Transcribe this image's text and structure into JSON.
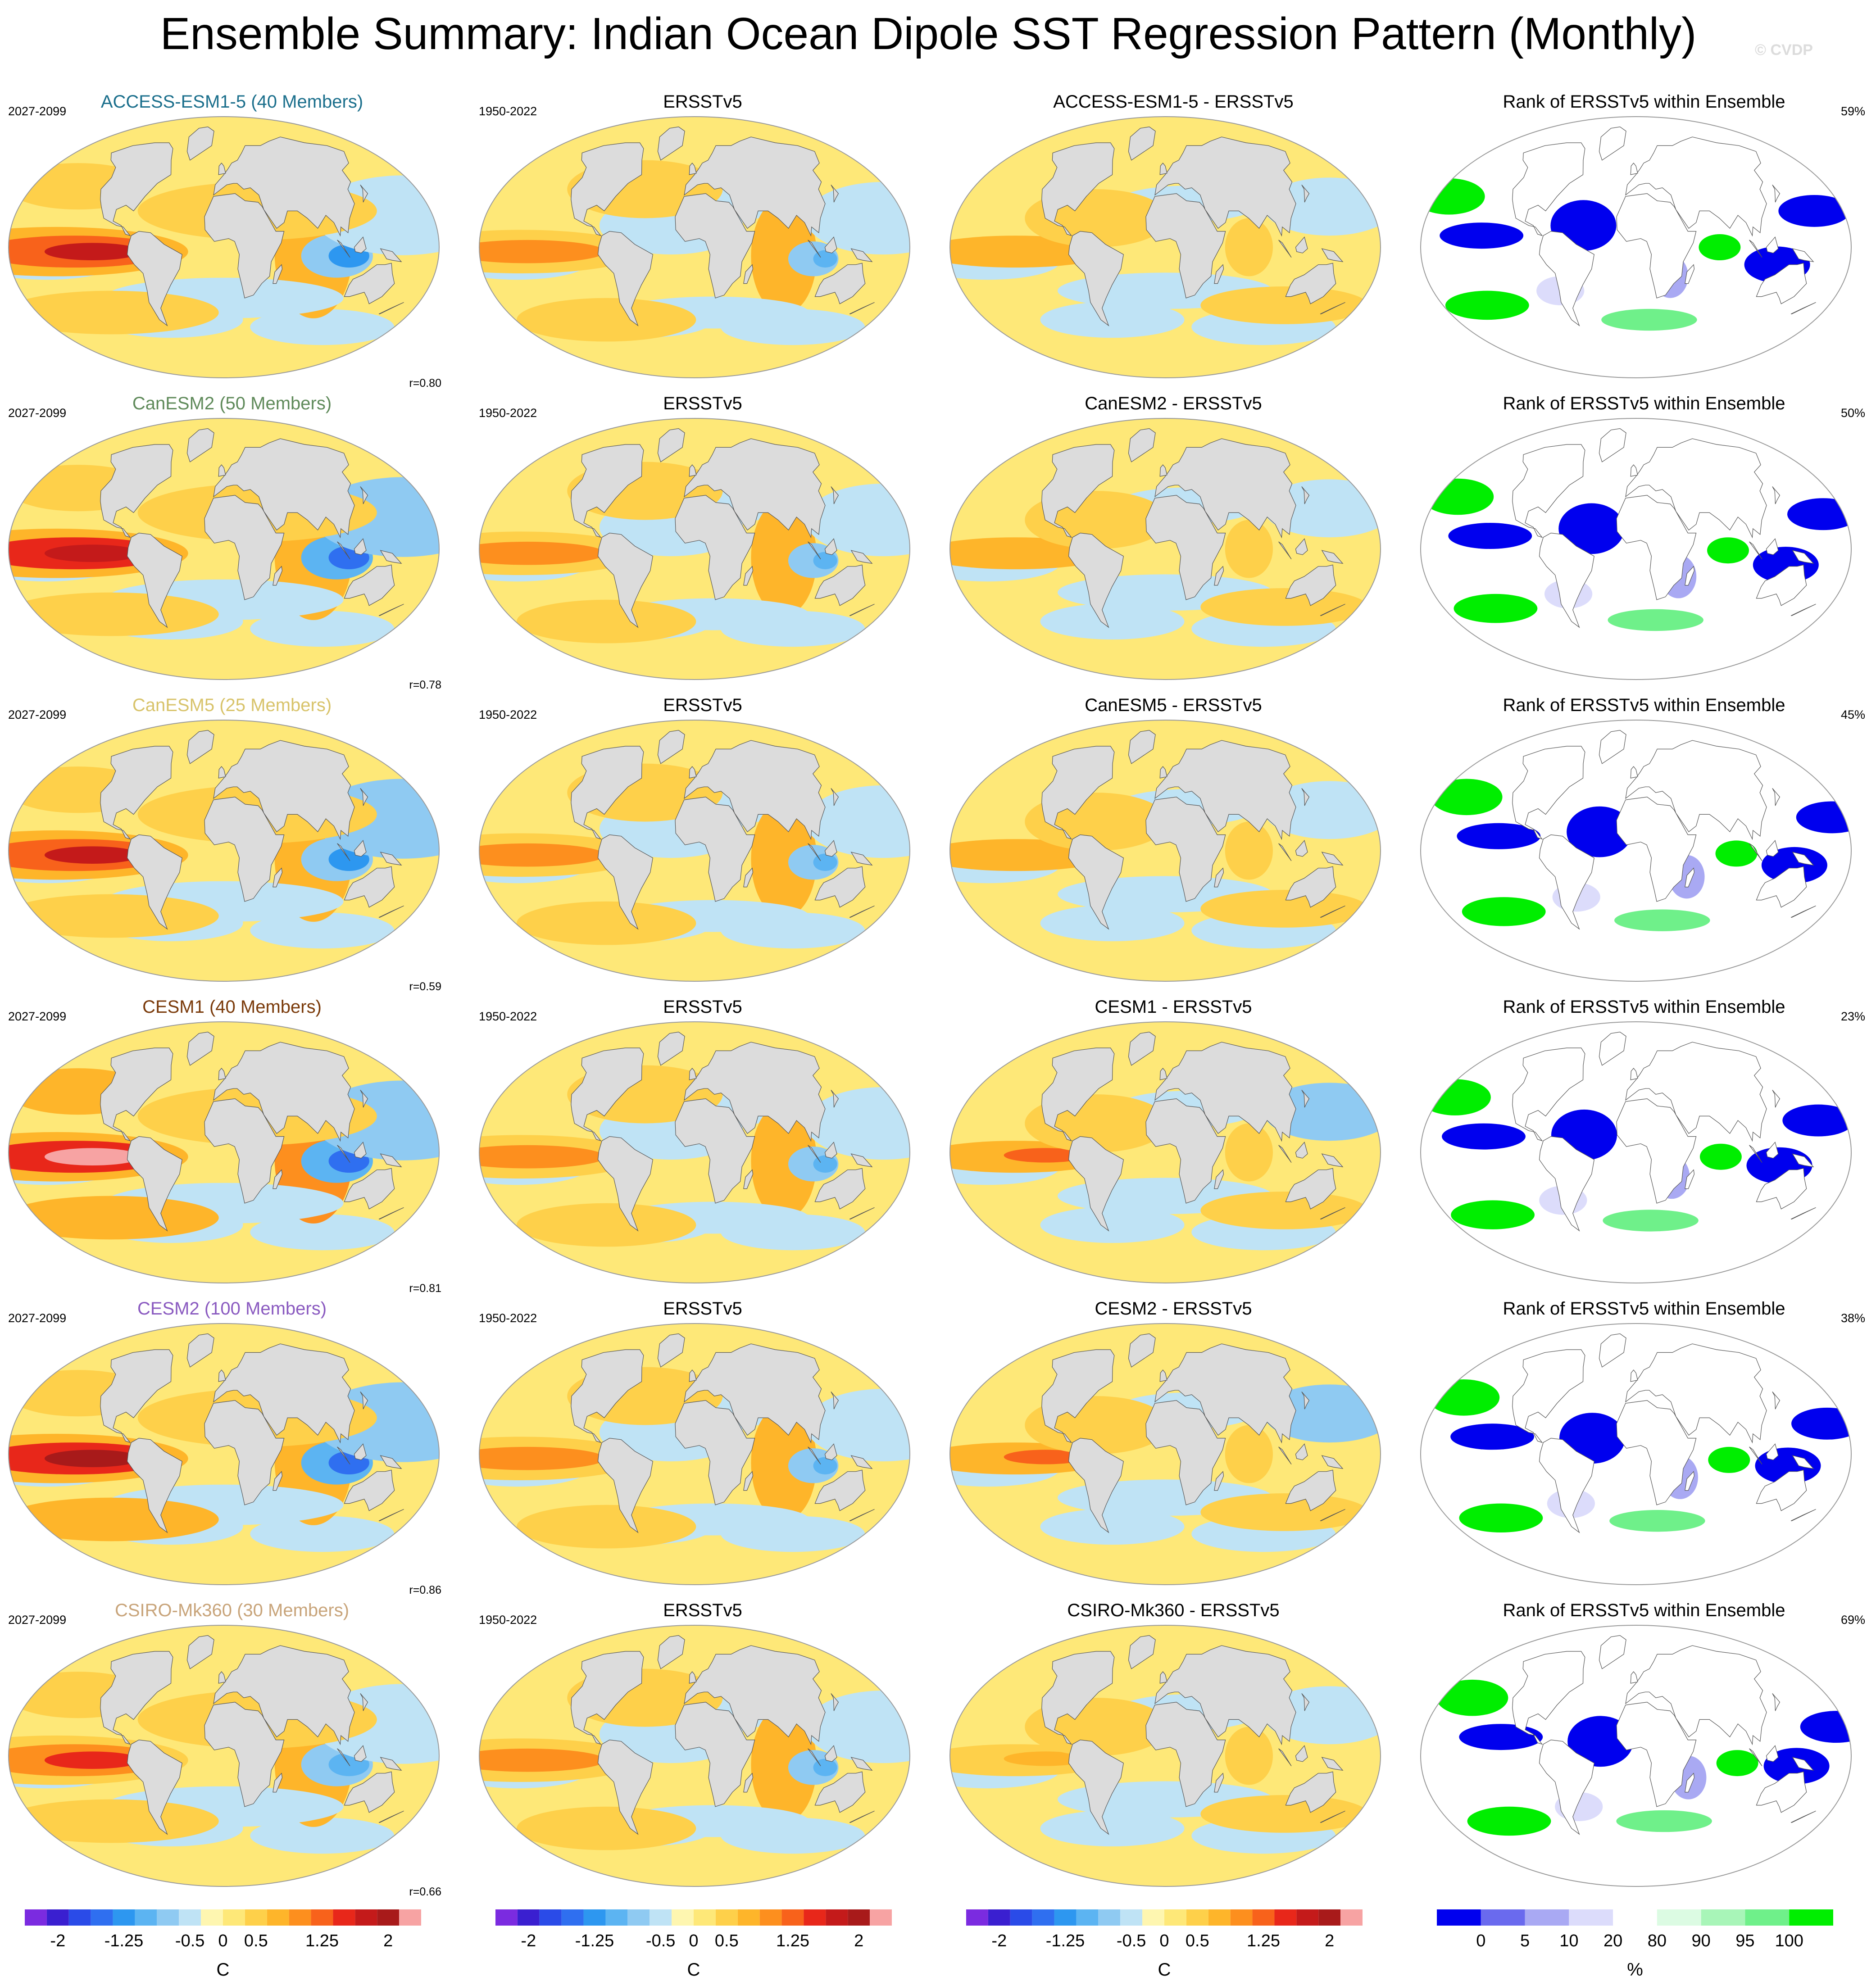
{
  "title": "Ensemble Summary: Indian Ocean Dipole SST Regression Pattern (Monthly)",
  "copyright": "© CVDP",
  "colors": {
    "land": "#dcdcdc",
    "ocean_border": "#9a9a9a",
    "sst_scale": [
      "#7b2be0",
      "#3a1fd0",
      "#2a4be8",
      "#2f6ff0",
      "#2d97f0",
      "#5cb4f2",
      "#8fcaf2",
      "#bfe3f5",
      "#fef6b0",
      "#fee878",
      "#fed04a",
      "#feb52a",
      "#fd8f1e",
      "#f8621b",
      "#e8271a",
      "#c41a1a",
      "#a81a1a",
      "#f7a3a3"
    ],
    "rank_scale": [
      "#0000ee",
      "#6a6aee",
      "#a9a9f3",
      "#dcdcfb",
      "#ffffff",
      "#dcfbe3",
      "#a8f5b8",
      "#6ff08a",
      "#00ee00"
    ]
  },
  "rows": [
    {
      "model": "ACCESS-ESM1-5 (40 Members)",
      "model_color": "#1b6f8c",
      "years": "2027-2099",
      "obs_years": "1950-2022",
      "diff_title": "ACCESS-ESM1-5 - ERSSTv5",
      "r": "r=0.80",
      "rank_pct": "59%",
      "amp": 1.0
    },
    {
      "model": "CanESM2 (50 Members)",
      "model_color": "#5f8a5a",
      "years": "2027-2099",
      "obs_years": "1950-2022",
      "diff_title": "CanESM2 - ERSSTv5",
      "r": "r=0.78",
      "rank_pct": "50%",
      "amp": 1.1
    },
    {
      "model": "CanESM5 (25 Members)",
      "model_color": "#d8c36a",
      "years": "2027-2099",
      "obs_years": "1950-2022",
      "diff_title": "CanESM5 - ERSSTv5",
      "r": "r=0.59",
      "rank_pct": "45%",
      "amp": 1.05
    },
    {
      "model": "CESM1 (40 Members)",
      "model_color": "#7a3a0a",
      "years": "2027-2099",
      "obs_years": "1950-2022",
      "diff_title": "CESM1 - ERSSTv5",
      "r": "r=0.81",
      "rank_pct": "23%",
      "amp": 1.3
    },
    {
      "model": "CESM2 (100 Members)",
      "model_color": "#8a5ac0",
      "years": "2027-2099",
      "obs_years": "1950-2022",
      "diff_title": "CESM2 - ERSSTv5",
      "r": "r=0.86",
      "rank_pct": "38%",
      "amp": 1.2
    },
    {
      "model": "CSIRO-Mk360 (30 Members)",
      "model_color": "#c8a47a",
      "years": "2027-2099",
      "obs_years": "1950-2022",
      "diff_title": "CSIRO-Mk360 - ERSSTv5",
      "r": "r=0.66",
      "rank_pct": "69%",
      "amp": 0.85
    }
  ],
  "obs_title": "ERSSTv5",
  "rank_title": "Rank of ERSSTv5 within Ensemble",
  "sst_colorbar": {
    "ticks": [
      "-2",
      "-1.25",
      "-0.5",
      "0",
      "0.5",
      "1.25",
      "2"
    ],
    "unit": "C"
  },
  "rank_colorbar": {
    "ticks": [
      "0",
      "5",
      "10",
      "20",
      "80",
      "90",
      "95",
      "100"
    ],
    "unit": "%"
  },
  "chart_data": [
    {
      "type": "heatmap",
      "title": "ACCESS-ESM1-5 (40 Members)",
      "period": "2027-2099",
      "annotation": "r=0.80",
      "xlabel": "",
      "ylabel": ""
    },
    {
      "type": "heatmap",
      "title": "ERSSTv5",
      "period": "1950-2022",
      "xlabel": "",
      "ylabel": ""
    },
    {
      "type": "heatmap",
      "title": "ACCESS-ESM1-5 - ERSSTv5",
      "xlabel": "",
      "ylabel": ""
    },
    {
      "type": "heatmap",
      "title": "Rank of ERSSTv5 within Ensemble",
      "annotation": "59%",
      "xlabel": "",
      "ylabel": ""
    },
    {
      "type": "heatmap",
      "title": "CanESM2 (50 Members)",
      "period": "2027-2099",
      "annotation": "r=0.78",
      "xlabel": "",
      "ylabel": ""
    },
    {
      "type": "heatmap",
      "title": "ERSSTv5",
      "period": "1950-2022",
      "xlabel": "",
      "ylabel": ""
    },
    {
      "type": "heatmap",
      "title": "CanESM2 - ERSSTv5",
      "xlabel": "",
      "ylabel": ""
    },
    {
      "type": "heatmap",
      "title": "Rank of ERSSTv5 within Ensemble",
      "annotation": "50%",
      "xlabel": "",
      "ylabel": ""
    },
    {
      "type": "heatmap",
      "title": "CanESM5 (25 Members)",
      "period": "2027-2099",
      "annotation": "r=0.59",
      "xlabel": "",
      "ylabel": ""
    },
    {
      "type": "heatmap",
      "title": "ERSSTv5",
      "period": "1950-2022",
      "xlabel": "",
      "ylabel": ""
    },
    {
      "type": "heatmap",
      "title": "CanESM5 - ERSSTv5",
      "xlabel": "",
      "ylabel": ""
    },
    {
      "type": "heatmap",
      "title": "Rank of ERSSTv5 within Ensemble",
      "annotation": "45%",
      "xlabel": "",
      "ylabel": ""
    },
    {
      "type": "heatmap",
      "title": "CESM1 (40 Members)",
      "period": "2027-2099",
      "annotation": "r=0.81",
      "xlabel": "",
      "ylabel": ""
    },
    {
      "type": "heatmap",
      "title": "ERSSTv5",
      "period": "1950-2022",
      "xlabel": "",
      "ylabel": ""
    },
    {
      "type": "heatmap",
      "title": "CESM1 - ERSSTv5",
      "xlabel": "",
      "ylabel": ""
    },
    {
      "type": "heatmap",
      "title": "Rank of ERSSTv5 within Ensemble",
      "annotation": "23%",
      "xlabel": "",
      "ylabel": ""
    },
    {
      "type": "heatmap",
      "title": "CESM2 (100 Members)",
      "period": "2027-2099",
      "annotation": "r=0.86",
      "xlabel": "",
      "ylabel": ""
    },
    {
      "type": "heatmap",
      "title": "ERSSTv5",
      "period": "1950-2022",
      "xlabel": "",
      "ylabel": ""
    },
    {
      "type": "heatmap",
      "title": "CESM2 - ERSSTv5",
      "xlabel": "",
      "ylabel": ""
    },
    {
      "type": "heatmap",
      "title": "Rank of ERSSTv5 within Ensemble",
      "annotation": "38%",
      "xlabel": "",
      "ylabel": ""
    },
    {
      "type": "heatmap",
      "title": "CSIRO-Mk360 (30 Members)",
      "period": "2027-2099",
      "annotation": "r=0.66",
      "xlabel": "",
      "ylabel": ""
    },
    {
      "type": "heatmap",
      "title": "ERSSTv5",
      "period": "1950-2022",
      "xlabel": "",
      "ylabel": ""
    },
    {
      "type": "heatmap",
      "title": "CSIRO-Mk360 - ERSSTv5",
      "xlabel": "",
      "ylabel": ""
    },
    {
      "type": "heatmap",
      "title": "Rank of ERSSTv5 within Ensemble",
      "annotation": "69%",
      "xlabel": "",
      "ylabel": ""
    }
  ]
}
